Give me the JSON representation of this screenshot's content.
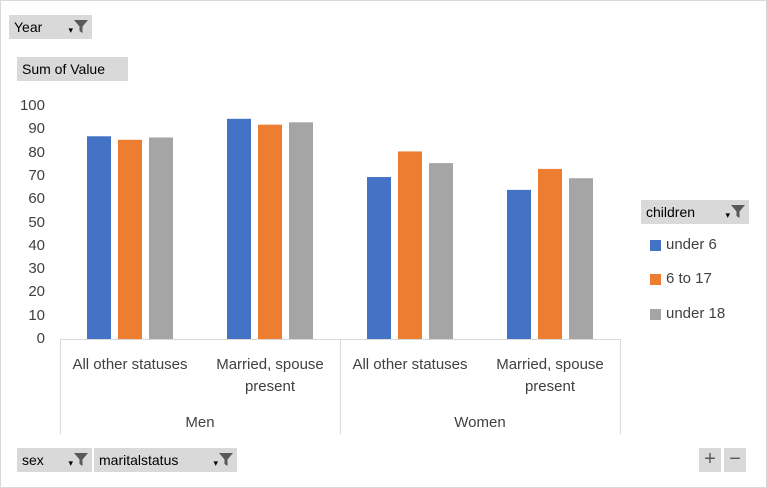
{
  "filters": {
    "year_label": "Year",
    "value_label": "Sum of Value",
    "sex_label": "sex",
    "marital_label": "maritalstatus"
  },
  "legend": {
    "title": "children",
    "items": [
      {
        "label": "under 6",
        "color": "#4472c4"
      },
      {
        "label": "6 to 17",
        "color": "#ed7d31"
      },
      {
        "label": "under 18",
        "color": "#a5a5a5"
      }
    ]
  },
  "icons": [
    "filter-funnel-icon",
    "dropdown-arrow-icon",
    "zoom-in-icon",
    "zoom-out-icon"
  ],
  "zoom": {
    "plus": "+",
    "minus": "−"
  },
  "chart_data": {
    "type": "bar",
    "ylim": [
      0,
      100
    ],
    "yticks": [
      0,
      10,
      20,
      30,
      40,
      50,
      60,
      70,
      80,
      90,
      100
    ],
    "groups": [
      {
        "label": "Men",
        "categories": [
          "All other statuses",
          "Married, spouse present"
        ]
      },
      {
        "label": "Women",
        "categories": [
          "All other statuses",
          "Married, spouse present"
        ]
      }
    ],
    "categories": [
      "All other statuses",
      "Married, spouse present",
      "All other statuses",
      "Married, spouse present"
    ],
    "series": [
      {
        "name": "under 6",
        "color": "#4472c4",
        "values": [
          87,
          94.5,
          69.5,
          64
        ]
      },
      {
        "name": "6 to 17",
        "color": "#ed7d31",
        "values": [
          85.5,
          92,
          80.5,
          73
        ]
      },
      {
        "name": "under 18",
        "color": "#a5a5a5",
        "values": [
          86.5,
          93,
          75.5,
          69
        ]
      }
    ],
    "grid": false,
    "legend_position": "right"
  }
}
